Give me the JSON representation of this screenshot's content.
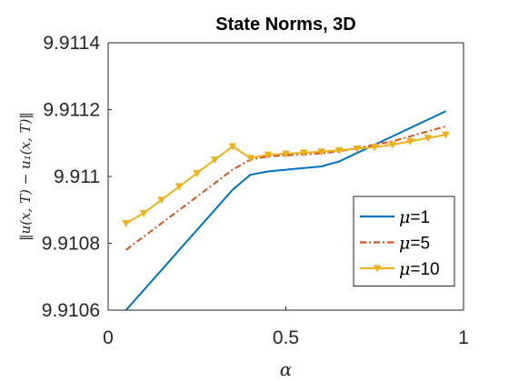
{
  "chart_data": {
    "type": "line",
    "title": "State Norms, 3D",
    "xlabel": "α",
    "ylabel": "‖u(x, T) − u₁(x, T)‖",
    "xlim": [
      0,
      1
    ],
    "ylim": [
      9.9106,
      9.9114
    ],
    "xticks": [
      "0",
      "0.5",
      "1"
    ],
    "yticks": [
      "9.9106",
      "9.9108",
      "9.911",
      "9.9112",
      "9.9114"
    ],
    "grid": false,
    "legend_position": "bottom-right",
    "series": [
      {
        "name": "μ=1",
        "color": "#0072BD",
        "style": "solid",
        "marker": "none",
        "x": [
          0.05,
          0.1,
          0.15,
          0.2,
          0.25,
          0.3,
          0.35,
          0.4,
          0.45,
          0.5,
          0.55,
          0.6,
          0.65,
          0.7,
          0.75,
          0.8,
          0.85,
          0.9,
          0.95
        ],
        "values": [
          9.9106,
          9.91066,
          9.91072,
          9.91078,
          9.91084,
          9.9109,
          9.91096,
          9.911005,
          9.911015,
          9.91102,
          9.911025,
          9.91103,
          9.911045,
          9.91107,
          9.911095,
          9.91112,
          9.911145,
          9.91117,
          9.911195
        ]
      },
      {
        "name": "μ=5",
        "color": "#D95319",
        "style": "dashdot",
        "marker": "none",
        "x": [
          0.05,
          0.1,
          0.15,
          0.2,
          0.25,
          0.3,
          0.35,
          0.4,
          0.45,
          0.5,
          0.55,
          0.6,
          0.65,
          0.7,
          0.75,
          0.8,
          0.85,
          0.9,
          0.95
        ],
        "values": [
          9.91078,
          9.91082,
          9.91086,
          9.9109,
          9.91094,
          9.91098,
          9.91102,
          9.91105,
          9.91106,
          9.911063,
          9.911066,
          9.911069,
          9.911075,
          9.911085,
          9.911095,
          9.911105,
          9.91112,
          9.911135,
          9.91115
        ]
      },
      {
        "name": "μ=10",
        "color": "#EDB120",
        "style": "solid",
        "marker": "triangle-down",
        "x": [
          0.05,
          0.1,
          0.15,
          0.2,
          0.25,
          0.3,
          0.35,
          0.4,
          0.45,
          0.5,
          0.55,
          0.6,
          0.65,
          0.7,
          0.75,
          0.8,
          0.85,
          0.9,
          0.95
        ],
        "values": [
          9.91086,
          9.91089,
          9.91093,
          9.91097,
          9.91101,
          9.91105,
          9.91109,
          9.911055,
          9.911065,
          9.911068,
          9.911071,
          9.911074,
          9.911078,
          9.911083,
          9.911088,
          9.911095,
          9.911105,
          9.911115,
          9.911125
        ]
      }
    ]
  }
}
